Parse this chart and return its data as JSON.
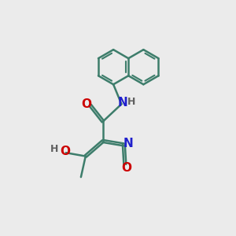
{
  "bg_color": "#ebebeb",
  "bond_color": "#3d7d6b",
  "bond_width": 1.8,
  "atom_colors": {
    "O": "#cc0000",
    "N": "#2020cc",
    "H": "#606060",
    "C": "#000000"
  },
  "font_size": 10,
  "fig_size": [
    3.0,
    3.0
  ],
  "dpi": 100
}
